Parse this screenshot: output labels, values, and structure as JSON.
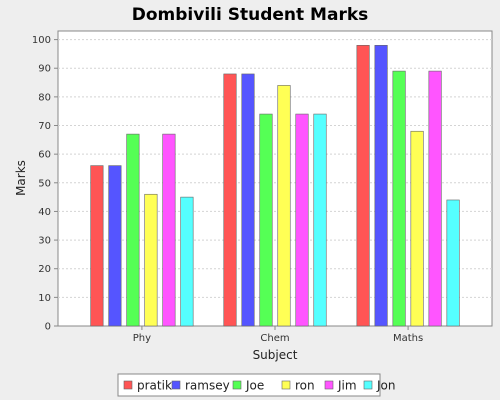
{
  "chart_data": {
    "type": "bar",
    "title": "Dombivili Student Marks",
    "xlabel": "Subject",
    "ylabel": "Marks",
    "categories": [
      "Phy",
      "Chem",
      "Maths"
    ],
    "series": [
      {
        "name": "pratik",
        "color": "#ff5555",
        "values": [
          56,
          88,
          98
        ]
      },
      {
        "name": "ramsey",
        "color": "#5555ff",
        "values": [
          56,
          88,
          98
        ]
      },
      {
        "name": "Joe",
        "color": "#55ff55",
        "values": [
          67,
          74,
          89
        ]
      },
      {
        "name": "ron",
        "color": "#ffff55",
        "values": [
          46,
          84,
          68
        ]
      },
      {
        "name": "Jim",
        "color": "#ff55ff",
        "values": [
          67,
          74,
          89
        ]
      },
      {
        "name": "Jon",
        "color": "#55ffff",
        "values": [
          45,
          74,
          44
        ]
      }
    ],
    "ylim": [
      0,
      103
    ],
    "yticks": [
      0,
      10,
      20,
      30,
      40,
      50,
      60,
      70,
      80,
      90,
      100
    ],
    "grid": true,
    "legend": "bottom"
  }
}
